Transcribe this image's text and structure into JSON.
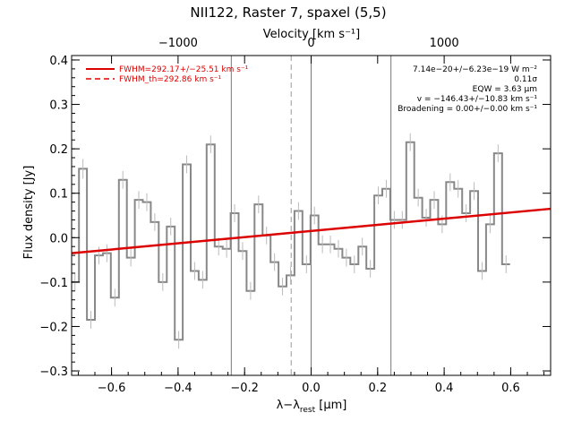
{
  "chart_data": {
    "type": "line",
    "title": "NII122, Raster 7, spaxel (5,5)",
    "xlabel_main": "λ−λ",
    "xlabel_sub": "rest",
    "xlabel_unit": " [μm]",
    "ylabel": "Flux density [Jy]",
    "top_axis_label": "Velocity [km s⁻¹]",
    "xlim": [
      -0.72,
      0.72
    ],
    "ylim": [
      -0.31,
      0.41
    ],
    "x_ticks": [
      -0.6,
      -0.4,
      -0.2,
      0.0,
      0.2,
      0.4,
      0.6
    ],
    "x_tick_labels": [
      "−0.6",
      "−0.4",
      "−0.2",
      "0.0",
      "0.2",
      "0.4",
      "0.6"
    ],
    "y_ticks": [
      -0.3,
      -0.2,
      -0.1,
      0.0,
      0.1,
      0.2,
      0.3,
      0.4
    ],
    "y_tick_labels": [
      "−0.3",
      "−0.2",
      "−0.1",
      "0.0",
      "0.1",
      "0.2",
      "0.3",
      "0.4"
    ],
    "top_ticks": [
      -1000,
      0,
      1000
    ],
    "top_tick_labels": [
      "−1000",
      "0",
      "1000"
    ],
    "top_tick_positions": [
      -0.4,
      0.0,
      0.4
    ],
    "vertical_lines_solid": [
      -0.24,
      0.0,
      0.24
    ],
    "vertical_line_dashed": -0.06,
    "legend": [
      {
        "label": "FWHM=292.17+/−25.51 km s⁻¹",
        "style": "solid",
        "color": "#dd0000"
      },
      {
        "label": "FWHM_th=292.86 km s⁻¹",
        "style": "dashed",
        "color": "#dd0000"
      }
    ],
    "annotations": [
      "7.14e−20+/−6.23e−19 W m⁻²",
      "0.11σ",
      "EQW = 3.63 μm",
      "v = −146.43+/−10.83 km s⁻¹",
      "Broadening = 0.00+/−0.00 km s⁻¹"
    ],
    "fit_line": {
      "x": [
        -0.72,
        0.72
      ],
      "y": [
        -0.035,
        0.065
      ],
      "color": "#dd0000"
    },
    "series": [
      {
        "style": "histogram",
        "color": "#888888",
        "bin_width": 0.024,
        "x_start": -0.71,
        "y": [
          -0.1,
          0.155,
          -0.185,
          -0.04,
          -0.035,
          -0.135,
          0.13,
          -0.045,
          0.085,
          0.08,
          0.035,
          -0.1,
          0.025,
          -0.23,
          0.165,
          -0.075,
          -0.095,
          0.21,
          -0.02,
          -0.025,
          0.055,
          -0.03,
          -0.12,
          0.075,
          0.005,
          -0.055,
          -0.11,
          -0.085,
          0.06,
          -0.06,
          0.05,
          -0.015,
          -0.015,
          -0.025,
          -0.045,
          -0.06,
          -0.02,
          -0.07,
          0.095,
          0.11,
          0.04,
          0.04,
          0.215,
          0.09,
          0.045,
          0.085,
          0.03,
          0.125,
          0.11,
          0.055,
          0.105,
          -0.075,
          0.03,
          0.19,
          -0.06
        ],
        "err": [
          0.02,
          0.022,
          0.02,
          0.02,
          0.02,
          0.02,
          0.02,
          0.02,
          0.02,
          0.02,
          0.02,
          0.02,
          0.02,
          0.02,
          0.02,
          0.02,
          0.02,
          0.02,
          0.02,
          0.02,
          0.02,
          0.02,
          0.02,
          0.02,
          0.02,
          0.02,
          0.02,
          0.02,
          0.02,
          0.02,
          0.02,
          0.02,
          0.02,
          0.02,
          0.02,
          0.02,
          0.02,
          0.02,
          0.02,
          0.02,
          0.02,
          0.02,
          0.02,
          0.02,
          0.02,
          0.02,
          0.02,
          0.02,
          0.02,
          0.02,
          0.02,
          0.02,
          0.02,
          0.02,
          0.02
        ]
      }
    ]
  }
}
